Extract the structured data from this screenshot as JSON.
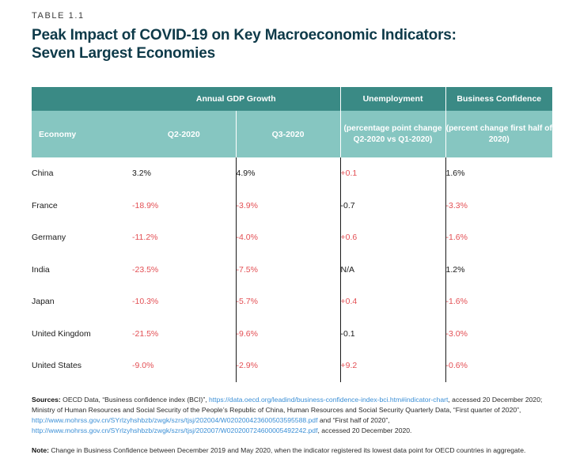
{
  "table_label": "TABLE 1.1",
  "title_line1": "Peak Impact of COVID-19 on Key Macroeconomic Indicators:",
  "title_line2": "Seven Largest Economies",
  "header": {
    "gdp_group": "Annual GDP Growth",
    "unemployment": "Unemployment",
    "business_confidence": "Business Confidence",
    "economy": "Economy",
    "q2": "Q2-2020",
    "q3": "Q3-2020",
    "unemployment_sub": "(percentage point change Q2-2020 vs Q1-2020)",
    "confidence_sub": "(percent change first half of 2020)"
  },
  "rows": [
    {
      "economy": "China",
      "q2": "3.2%",
      "q3": "4.9%",
      "unemp": "+0.1",
      "conf": "1.6%"
    },
    {
      "economy": "France",
      "q2": "-18.9%",
      "q3": "-3.9%",
      "unemp": "-0.7",
      "conf": "-3.3%"
    },
    {
      "economy": "Germany",
      "q2": "-11.2%",
      "q3": "-4.0%",
      "unemp": "+0.6",
      "conf": "-1.6%"
    },
    {
      "economy": "India",
      "q2": "-23.5%",
      "q3": "-7.5%",
      "unemp": "N/A",
      "conf": "1.2%"
    },
    {
      "economy": "Japan",
      "q2": "-10.3%",
      "q3": "-5.7%",
      "unemp": "+0.4",
      "conf": "-1.6%"
    },
    {
      "economy": "United Kingdom",
      "q2": "-21.5%",
      "q3": "-9.6%",
      "unemp": "-0.1",
      "conf": "-3.0%"
    },
    {
      "economy": "United States",
      "q2": "-9.0%",
      "q3": "-2.9%",
      "unemp": "+9.2",
      "conf": "-0.6%"
    }
  ],
  "sources": {
    "label": "Sources:",
    "t1": " OECD Data, “Business confidence index (BCI)”, ",
    "link1": "https://data.oecd.org/leadind/business-confidence-index-bci.htm#indicator-chart",
    "t2": ", accessed 20 December 2020; Ministry of Human Resources and Social Security of the People’s Republic of China, Human Resources and Social Security Quarterly Data, “First quarter of 2020”, ",
    "link2": "http://www.mohrss.gov.cn/SYrlzyhshbzb/zwgk/szrs/tjsj/202004/W020200423600503595588.pdf",
    "t3": " and “First half of 2020”, ",
    "link3": "http://www.mohrss.gov.cn/SYrlzyhshbzb/zwgk/szrs/tjsj/202007/W020200724600005492242.pdf",
    "t4": ", accessed 20 December 2020."
  },
  "note": {
    "label": "Note:",
    "text": " Change in Business Confidence between December 2019 and May 2020, when the indicator registered its lowest data point for OECD countries in aggregate."
  },
  "colors": {
    "header_dark": "#3a8a85",
    "header_light": "#86c6c1",
    "title": "#0e3a49",
    "negative": "#e34f54",
    "positive": "#1a1a1a",
    "link": "#3b8fd6"
  }
}
